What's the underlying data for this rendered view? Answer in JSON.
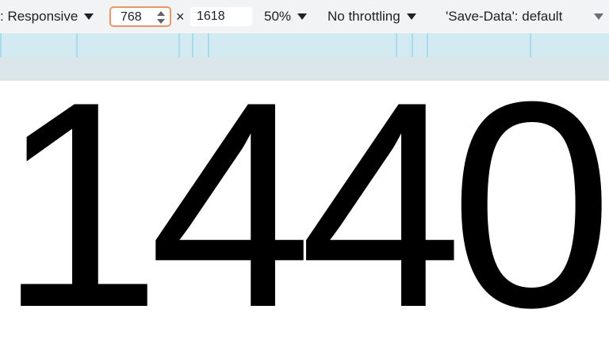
{
  "toolbar": {
    "device_label": ": Responsive",
    "width_value": "768",
    "times_symbol": "×",
    "height_value": "1618",
    "zoom_label": "50%",
    "throttle_label": "No throttling",
    "save_data_label": "'Save-Data': default"
  },
  "viewport": {
    "content_text": "1440"
  },
  "icons": {
    "device_caret": "caret-down-icon",
    "width_spinner": "spinner-icon",
    "zoom_caret": "caret-down-icon",
    "throttle_caret": "caret-down-icon",
    "save_data_caret": "caret-down-icon"
  },
  "colors": {
    "toolbar_bg": "#f1f3f4",
    "focus_border": "#e8956a",
    "media_query_bar": "#d3eaf2",
    "ruler_bg": "#dbe6ea"
  }
}
